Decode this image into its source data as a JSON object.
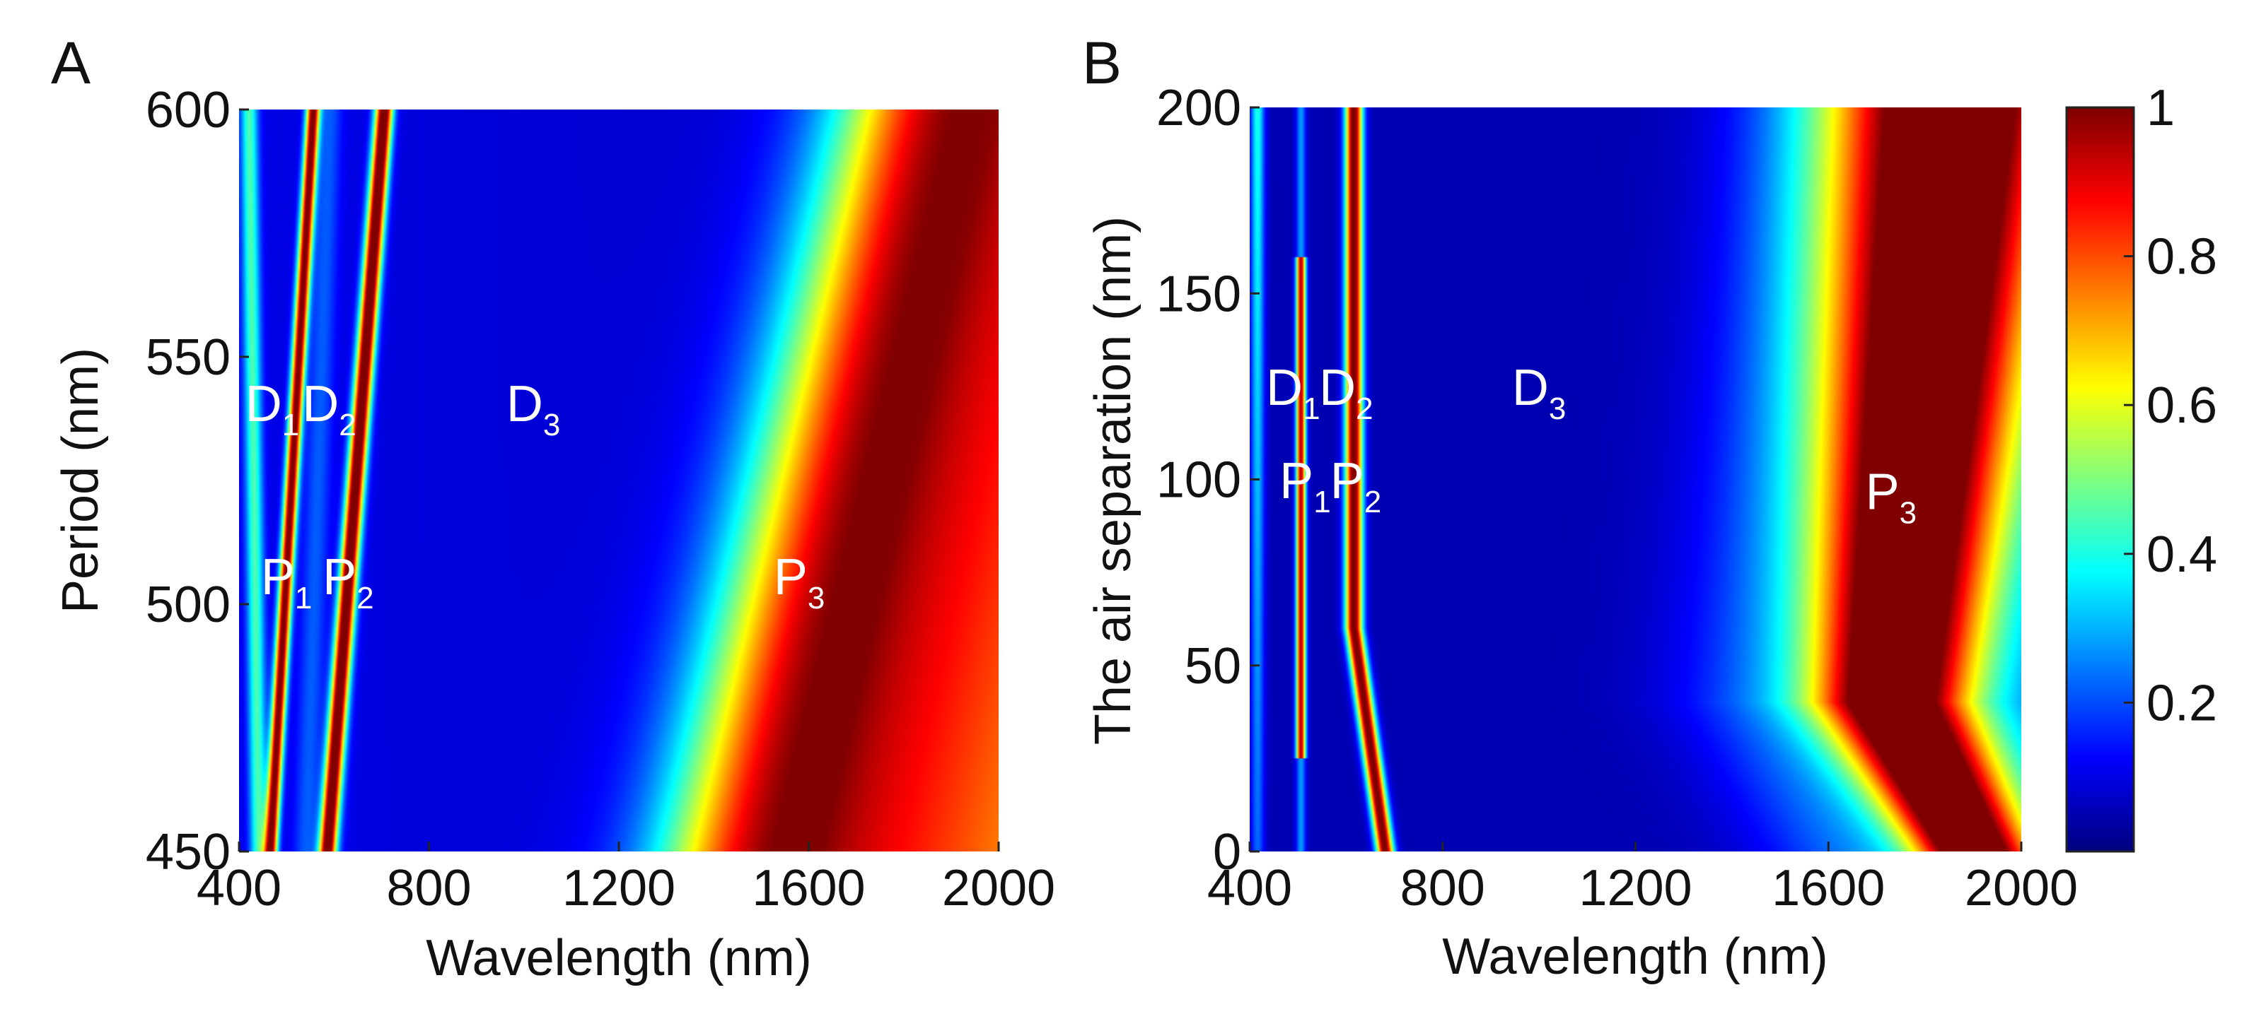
{
  "chart_data": [
    {
      "panel": "A",
      "type": "heatmap",
      "xlabel": "Wavelength (nm)",
      "ylabel": "Period (nm)",
      "xlim": [
        400,
        2000
      ],
      "ylim": [
        450,
        600
      ],
      "xticks": [
        "400",
        "800",
        "1200",
        "1600",
        "2000"
      ],
      "yticks": [
        "450",
        "500",
        "550",
        "600"
      ],
      "features": [
        {
          "name": "dip-a",
          "kind": "dip",
          "wl_at_ymin": 440,
          "wl_at_ymax": 420,
          "width": 18
        },
        {
          "name": "D1",
          "kind": "dip",
          "wl_at_ymin": 540,
          "wl_at_ymax": 590,
          "width": 26
        },
        {
          "name": "P1",
          "kind": "peak",
          "wl_at_ymin": 465,
          "wl_at_ymax": 555,
          "width": 14,
          "amp": 0.95
        },
        {
          "name": "D2",
          "kind": "dip",
          "wl_at_ymin": 600,
          "wl_at_ymax": 700,
          "width": 22
        },
        {
          "name": "P2",
          "kind": "peak",
          "wl_at_ymin": 585,
          "wl_at_ymax": 705,
          "width": 18,
          "amp": 1.0
        },
        {
          "name": "P3",
          "kind": "edge",
          "wl_at_ymin": 1330,
          "wl_at_ymax": 1700,
          "width": 70
        }
      ],
      "labels": [
        {
          "base": "D",
          "sub": "1",
          "x": 470,
          "y": 537
        },
        {
          "base": "D",
          "sub": "2",
          "x": 590,
          "y": 537
        },
        {
          "base": "D",
          "sub": "3",
          "x": 1020,
          "y": 537
        },
        {
          "base": "P",
          "sub": "1",
          "x": 500,
          "y": 502
        },
        {
          "base": "P",
          "sub": "2",
          "x": 630,
          "y": 502
        },
        {
          "base": "P",
          "sub": "3",
          "x": 1580,
          "y": 502
        }
      ]
    },
    {
      "panel": "B",
      "type": "heatmap",
      "xlabel": "Wavelength (nm)",
      "ylabel": "The air separation (nm)",
      "xlim": [
        400,
        2000
      ],
      "ylim": [
        0,
        200
      ],
      "xticks": [
        "400",
        "800",
        "1200",
        "1600",
        "2000"
      ],
      "yticks": [
        "0",
        "50",
        "100",
        "150",
        "200"
      ],
      "features": [
        {
          "name": "P1",
          "kind": "peak",
          "wl": 505,
          "width": 10,
          "amp": 0.9
        },
        {
          "name": "D2",
          "kind": "dip",
          "wl": 560,
          "width": 30
        },
        {
          "name": "P2",
          "kind": "peak",
          "wl_top": 615,
          "wl_bottom": 680,
          "width": 18,
          "amp": 1.0
        },
        {
          "name": "P3",
          "kind": "broad",
          "center_top": 1850,
          "center_min": 1730,
          "center_bottom": 1900,
          "width_top": 240,
          "width_bottom": 120
        }
      ],
      "labels": [
        {
          "base": "D",
          "sub": "1",
          "x": 490,
          "y": 120
        },
        {
          "base": "D",
          "sub": "2",
          "x": 600,
          "y": 120
        },
        {
          "base": "D",
          "sub": "3",
          "x": 1000,
          "y": 120
        },
        {
          "base": "P",
          "sub": "1",
          "x": 515,
          "y": 95
        },
        {
          "base": "P",
          "sub": "2",
          "x": 620,
          "y": 95
        },
        {
          "base": "P",
          "sub": "3",
          "x": 1730,
          "y": 92
        }
      ]
    }
  ],
  "colorbar": {
    "colormap": "jet",
    "range": [
      0,
      1
    ],
    "ticks": [
      {
        "value": 0.2,
        "label": "0.2"
      },
      {
        "value": 0.4,
        "label": "0.4"
      },
      {
        "value": 0.6,
        "label": "0.6"
      },
      {
        "value": 0.8,
        "label": "0.8"
      },
      {
        "value": 1.0,
        "label": "1"
      }
    ]
  }
}
